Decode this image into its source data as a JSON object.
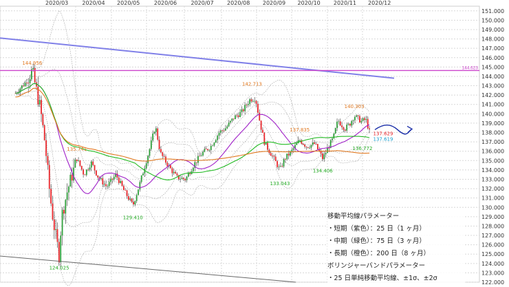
{
  "chart_data": {
    "type": "candlestick",
    "x_ticks": [
      "2020/03",
      "2020/04",
      "2020/05",
      "2020/06",
      "2020/07",
      "2020/08",
      "2020/09",
      "2020/10",
      "2020/11",
      "2020/12"
    ],
    "y_ticks": [
      "122.000",
      "123.000",
      "124.000",
      "125.000",
      "126.000",
      "127.000",
      "128.000",
      "129.000",
      "130.000",
      "131.000",
      "132.000",
      "133.000",
      "134.000",
      "135.000",
      "136.000",
      "137.000",
      "138.000",
      "139.000",
      "140.000",
      "141.000",
      "142.000",
      "143.000",
      "144.000",
      "145.000",
      "146.000",
      "147.000",
      "148.000",
      "149.000",
      "150.000",
      "151.000"
    ],
    "ylim": [
      122,
      151.5
    ],
    "colors": {
      "up": "#2e9e3a",
      "down": "#e8262b",
      "wick": "#333333",
      "ma_short": "#a020c8",
      "ma_mid": "#22bb22",
      "ma_long": "#e07820",
      "bollinger": "#999999",
      "trend": "#8080e8",
      "resistance": "#cc44cc",
      "support": "#666666",
      "arrow": "#1a2ea8"
    },
    "annotations": [
      {
        "label": "144.956",
        "color": "#e07820",
        "x": "2020/02/25",
        "y": 144.956
      },
      {
        "label": "142.713",
        "color": "#e07820",
        "x": "2020/08/28",
        "y": 142.713
      },
      {
        "label": "137.835",
        "color": "#e07820",
        "x": "2020/10/08",
        "y": 137.835
      },
      {
        "label": "140.303",
        "color": "#e07820",
        "x": "2020/11/24",
        "y": 140.303
      },
      {
        "label": "135.741",
        "color": "#e07820",
        "x": "2020/04/02",
        "y": 135.741
      },
      {
        "label": "129.410",
        "color": "#22aa22",
        "x": "2020/05/20",
        "y": 129.41
      },
      {
        "label": "124.025",
        "color": "#22aa22",
        "x": "2020/03/18",
        "y": 124.025
      },
      {
        "label": "133.043",
        "color": "#22aa22",
        "x": "2020/09/21",
        "y": 133.043
      },
      {
        "label": "134.406",
        "color": "#22aa22",
        "x": "2020/10/28",
        "y": 134.406
      },
      {
        "label": "136.772",
        "color": "#22aa22",
        "x": "2020/12/01",
        "y": 136.772
      },
      {
        "label": "137.629",
        "color": "#e8262b",
        "x": "2020/12/08",
        "y": 137.629
      },
      {
        "label": "137.619",
        "color": "#1aa0d0",
        "x": "2020/12/08",
        "y": 137.619
      }
    ],
    "levels": [
      {
        "label": "144.623",
        "y": 144.623,
        "color": "#cc44cc"
      }
    ],
    "ohlc_keyframes": [
      {
        "x": "2020/02/13",
        "close": 142.2
      },
      {
        "x": "2020/02/20",
        "close": 143.3
      },
      {
        "x": "2020/02/25",
        "close": 144.6
      },
      {
        "x": "2020/03/02",
        "close": 140.5
      },
      {
        "x": "2020/03/06",
        "close": 136.8
      },
      {
        "x": "2020/03/10",
        "close": 131.5
      },
      {
        "x": "2020/03/13",
        "close": 128.5
      },
      {
        "x": "2020/03/18",
        "close": 124.8
      },
      {
        "x": "2020/03/20",
        "close": 129.0
      },
      {
        "x": "2020/03/25",
        "close": 131.8
      },
      {
        "x": "2020/03/31",
        "close": 134.3
      },
      {
        "x": "2020/04/02",
        "close": 135.2
      },
      {
        "x": "2020/04/08",
        "close": 133.5
      },
      {
        "x": "2020/04/14",
        "close": 134.8
      },
      {
        "x": "2020/04/20",
        "close": 133.2
      },
      {
        "x": "2020/04/27",
        "close": 132.2
      },
      {
        "x": "2020/05/05",
        "close": 133.5
      },
      {
        "x": "2020/05/12",
        "close": 131.8
      },
      {
        "x": "2020/05/20",
        "close": 130.2
      },
      {
        "x": "2020/05/26",
        "close": 132.5
      },
      {
        "x": "2020/06/03",
        "close": 136.0
      },
      {
        "x": "2020/06/08",
        "close": 138.7
      },
      {
        "x": "2020/06/12",
        "close": 135.8
      },
      {
        "x": "2020/06/18",
        "close": 134.5
      },
      {
        "x": "2020/06/25",
        "close": 133.2
      },
      {
        "x": "2020/07/02",
        "close": 133.0
      },
      {
        "x": "2020/07/09",
        "close": 134.6
      },
      {
        "x": "2020/07/16",
        "close": 135.8
      },
      {
        "x": "2020/07/23",
        "close": 136.5
      },
      {
        "x": "2020/07/30",
        "close": 138.0
      },
      {
        "x": "2020/08/05",
        "close": 138.5
      },
      {
        "x": "2020/08/12",
        "close": 139.6
      },
      {
        "x": "2020/08/19",
        "close": 140.2
      },
      {
        "x": "2020/08/26",
        "close": 141.5
      },
      {
        "x": "2020/08/31",
        "close": 141.7
      },
      {
        "x": "2020/09/04",
        "close": 139.0
      },
      {
        "x": "2020/09/08",
        "close": 136.8
      },
      {
        "x": "2020/09/14",
        "close": 135.6
      },
      {
        "x": "2020/09/21",
        "close": 134.0
      },
      {
        "x": "2020/09/25",
        "close": 135.2
      },
      {
        "x": "2020/10/01",
        "close": 136.0
      },
      {
        "x": "2020/10/08",
        "close": 137.2
      },
      {
        "x": "2020/10/14",
        "close": 136.5
      },
      {
        "x": "2020/10/21",
        "close": 136.8
      },
      {
        "x": "2020/10/28",
        "close": 135.2
      },
      {
        "x": "2020/11/02",
        "close": 136.5
      },
      {
        "x": "2020/11/06",
        "close": 137.4
      },
      {
        "x": "2020/11/10",
        "close": 139.3
      },
      {
        "x": "2020/11/16",
        "close": 138.4
      },
      {
        "x": "2020/11/20",
        "close": 138.9
      },
      {
        "x": "2020/11/24",
        "close": 139.8
      },
      {
        "x": "2020/11/30",
        "close": 139.2
      },
      {
        "x": "2020/12/04",
        "close": 139.4
      },
      {
        "x": "2020/12/08",
        "close": 137.7
      }
    ]
  },
  "legend": {
    "title1": "移動平均線パラメーター",
    "short": "・短期（紫色）：25 日（1 ヶ月）",
    "mid": "・中期（緑色）：75 日（3 ヶ月）",
    "long": "・長期（橙色）：200 日（8 ヶ月）",
    "title2": "ボリンジャーバンドパラメーター",
    "bb": "・25 日単純移動平均線、±1σ、±2σ"
  }
}
